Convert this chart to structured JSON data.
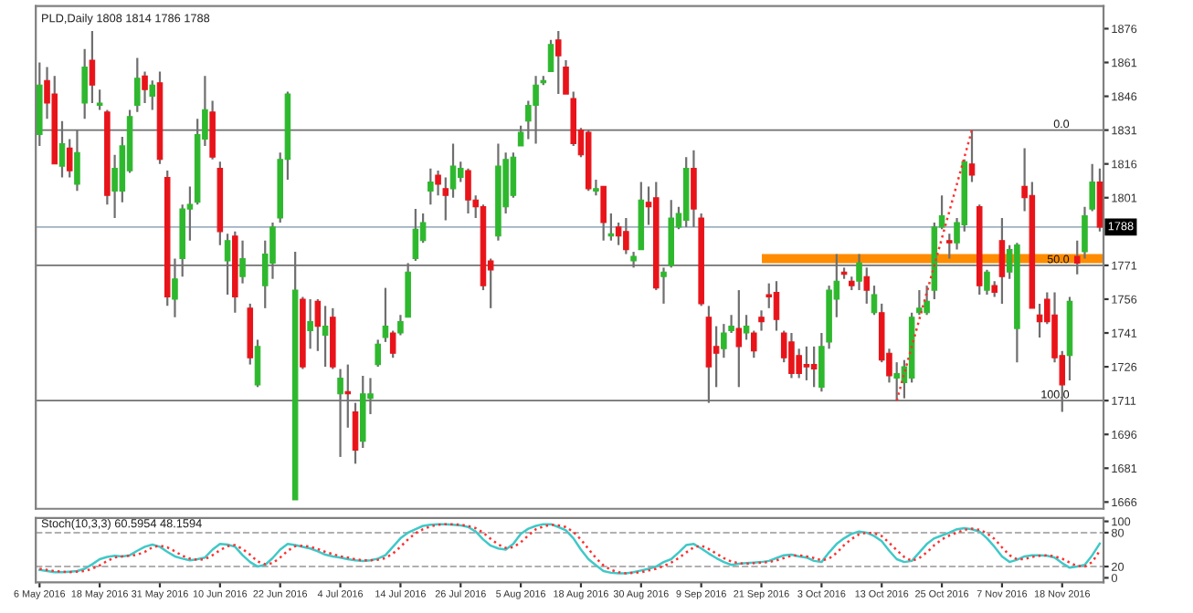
{
  "chart_data": [
    {
      "type": "candlestick",
      "title": "PLD,Daily 1808 1814 1786 1788",
      "categories": [
        null,
        null,
        null,
        null,
        null,
        null,
        null,
        null,
        null,
        null,
        null,
        null,
        null,
        null,
        null,
        null,
        null,
        null,
        null,
        null,
        null,
        null,
        null,
        null,
        null,
        null,
        null,
        null,
        null,
        null,
        null,
        null,
        null,
        null,
        null,
        null,
        null,
        null,
        null,
        null,
        null,
        null,
        null,
        null,
        null,
        null,
        null,
        null,
        null,
        null,
        null,
        null,
        null,
        null,
        null,
        null,
        null,
        null,
        null,
        null,
        null,
        null,
        null,
        null,
        null,
        null,
        null,
        null,
        null,
        null,
        null,
        null,
        null,
        null,
        null,
        null,
        null,
        null,
        null,
        null,
        null,
        null,
        null,
        null,
        null,
        null,
        null,
        null,
        null,
        null,
        null,
        null,
        null,
        null,
        null,
        null,
        null,
        null,
        null,
        null,
        null,
        null,
        null,
        null,
        null,
        null,
        null,
        null,
        null,
        null,
        null,
        null,
        null,
        null,
        null,
        null,
        null,
        null,
        null,
        null,
        null,
        null,
        null,
        null,
        null,
        null,
        null,
        null,
        null,
        null,
        null,
        null,
        null,
        null,
        null,
        null,
        null,
        null,
        null,
        null,
        null,
        null
      ],
      "ohlc": [
        [
          1829,
          1861,
          1824,
          1851
        ],
        [
          1853,
          1859,
          1836,
          1843
        ],
        [
          1847,
          1855,
          1816,
          1816
        ],
        [
          1815,
          1835,
          1810,
          1825
        ],
        [
          1823,
          1827,
          1810,
          1813
        ],
        [
          1807,
          1831,
          1804,
          1821
        ],
        [
          1843,
          1867,
          1836,
          1859
        ],
        [
          1862,
          1875,
          1843,
          1851
        ],
        [
          1842,
          1849,
          1840,
          1843
        ],
        [
          1839,
          1840,
          1798,
          1802
        ],
        [
          1804,
          1820,
          1792,
          1814
        ],
        [
          1804,
          1828,
          1799,
          1824
        ],
        [
          1813,
          1840,
          1812,
          1837
        ],
        [
          1842,
          1863,
          1839,
          1854
        ],
        [
          1855,
          1857,
          1843,
          1849
        ],
        [
          1846,
          1853,
          1840,
          1851
        ],
        [
          1852,
          1857,
          1816,
          1818
        ],
        [
          1810,
          1813,
          1753,
          1757
        ],
        [
          1756,
          1774,
          1748,
          1765
        ],
        [
          1774,
          1798,
          1766,
          1796
        ],
        [
          1796,
          1806,
          1782,
          1798
        ],
        [
          1799,
          1836,
          1798,
          1829
        ],
        [
          1827,
          1855,
          1824,
          1840
        ],
        [
          1839,
          1844,
          1818,
          1819
        ],
        [
          1814,
          1817,
          1780,
          1786
        ],
        [
          1773,
          1785,
          1758,
          1782
        ],
        [
          1784,
          1786,
          1750,
          1757
        ],
        [
          1766,
          1782,
          1763,
          1774
        ],
        [
          1752,
          1754,
          1727,
          1730
        ],
        [
          1718,
          1738,
          1717,
          1735
        ],
        [
          1762,
          1782,
          1752,
          1776
        ],
        [
          1772,
          1790,
          1765,
          1788
        ],
        [
          1792,
          1821,
          1790,
          1818
        ],
        [
          1818,
          1848,
          1809,
          1847
        ],
        [
          1667,
          1777,
          1667,
          1760
        ],
        [
          1756,
          1757,
          1725,
          1726
        ],
        [
          1742,
          1756,
          1734,
          1746
        ],
        [
          1755,
          1756,
          1733,
          1744
        ],
        [
          1740,
          1753,
          1726,
          1744
        ],
        [
          1748,
          1752,
          1725,
          1726
        ],
        [
          1714,
          1725,
          1686,
          1721
        ],
        [
          1715,
          1727,
          1699,
          1714
        ],
        [
          1706,
          1710,
          1683,
          1689
        ],
        [
          1693,
          1722,
          1690,
          1714
        ],
        [
          1712,
          1721,
          1705,
          1714
        ],
        [
          1727,
          1738,
          1726,
          1736
        ],
        [
          1739,
          1761,
          1737,
          1744
        ],
        [
          1741,
          1742,
          1730,
          1732
        ],
        [
          1741,
          1749,
          1740,
          1746
        ],
        [
          1748,
          1772,
          1748,
          1768
        ],
        [
          1774,
          1796,
          1773,
          1787
        ],
        [
          1782,
          1794,
          1781,
          1790
        ],
        [
          1804,
          1814,
          1798,
          1808
        ],
        [
          1811,
          1813,
          1802,
          1807
        ],
        [
          1805,
          1810,
          1791,
          1802
        ],
        [
          1805,
          1825,
          1801,
          1815
        ],
        [
          1810,
          1817,
          1808,
          1814
        ],
        [
          1813,
          1814,
          1794,
          1800
        ],
        [
          1800,
          1802,
          1792,
          1797
        ],
        [
          1797,
          1798,
          1760,
          1762
        ],
        [
          1773,
          1774,
          1752,
          1769
        ],
        [
          1784,
          1825,
          1782,
          1815
        ],
        [
          1797,
          1821,
          1794,
          1818
        ],
        [
          1802,
          1821,
          1801,
          1819
        ],
        [
          1824,
          1833,
          1824,
          1830
        ],
        [
          1835,
          1844,
          1827,
          1842
        ],
        [
          1842,
          1855,
          1825,
          1851
        ],
        [
          1852,
          1855,
          1851,
          1853
        ],
        [
          1857,
          1871,
          1857,
          1869
        ],
        [
          1871,
          1875,
          1847,
          1864
        ],
        [
          1859,
          1862,
          1847,
          1847
        ],
        [
          1845,
          1848,
          1824,
          1825
        ],
        [
          1831,
          1832,
          1819,
          1820
        ],
        [
          1830,
          1831,
          1804,
          1805
        ],
        [
          1804,
          1809,
          1802,
          1805
        ],
        [
          1806,
          1806,
          1782,
          1790
        ],
        [
          1784,
          1794,
          1782,
          1785
        ],
        [
          1788,
          1790,
          1780,
          1784
        ],
        [
          1786,
          1792,
          1776,
          1778
        ],
        [
          1773,
          1777,
          1770,
          1775
        ],
        [
          1778,
          1808,
          1778,
          1800
        ],
        [
          1799,
          1806,
          1789,
          1797
        ],
        [
          1801,
          1808,
          1760,
          1761
        ],
        [
          1766,
          1770,
          1754,
          1768
        ],
        [
          1771,
          1800,
          1770,
          1792
        ],
        [
          1788,
          1797,
          1787,
          1794
        ],
        [
          1791,
          1819,
          1788,
          1814
        ],
        [
          1814,
          1822,
          1788,
          1796
        ],
        [
          1792,
          1794,
          1753,
          1754
        ],
        [
          1748,
          1753,
          1710,
          1726
        ],
        [
          1735,
          1744,
          1717,
          1732
        ],
        [
          1734,
          1745,
          1730,
          1741
        ],
        [
          1742,
          1749,
          1741,
          1744
        ],
        [
          1743,
          1760,
          1717,
          1735
        ],
        [
          1741,
          1749,
          1738,
          1744
        ],
        [
          1741,
          1742,
          1730,
          1733
        ],
        [
          1748,
          1751,
          1742,
          1746
        ],
        [
          1758,
          1763,
          1752,
          1757
        ],
        [
          1759,
          1764,
          1742,
          1747
        ],
        [
          1741,
          1742,
          1728,
          1730
        ],
        [
          1737,
          1741,
          1721,
          1723
        ],
        [
          1731,
          1734,
          1721,
          1723
        ],
        [
          1727,
          1735,
          1720,
          1726
        ],
        [
          1727,
          1735,
          1717,
          1725
        ],
        [
          1717,
          1741,
          1715,
          1735
        ],
        [
          1737,
          1762,
          1734,
          1760
        ],
        [
          1756,
          1776,
          1748,
          1764
        ],
        [
          1768,
          1770,
          1765,
          1767
        ],
        [
          1764,
          1766,
          1760,
          1762
        ],
        [
          1764,
          1776,
          1760,
          1772
        ],
        [
          1766,
          1770,
          1754,
          1760
        ],
        [
          1750,
          1762,
          1749,
          1758
        ],
        [
          1750,
          1754,
          1728,
          1729
        ],
        [
          1732,
          1734,
          1719,
          1722
        ],
        [
          1721,
          1728,
          1711,
          1723
        ],
        [
          1719,
          1729,
          1712,
          1726
        ],
        [
          1721,
          1750,
          1719,
          1748
        ],
        [
          1750,
          1760,
          1749,
          1752
        ],
        [
          1750,
          1762,
          1749,
          1755
        ],
        [
          1760,
          1790,
          1756,
          1788
        ],
        [
          1788,
          1802,
          1787,
          1793
        ],
        [
          1782,
          1785,
          1774,
          1781
        ],
        [
          1781,
          1792,
          1778,
          1790
        ],
        [
          1789,
          1818,
          1786,
          1817
        ],
        [
          1816,
          1831,
          1808,
          1811
        ],
        [
          1797,
          1798,
          1758,
          1762
        ],
        [
          1760,
          1769,
          1758,
          1768
        ],
        [
          1762,
          1764,
          1757,
          1759
        ],
        [
          1782,
          1792,
          1754,
          1766
        ],
        [
          1768,
          1780,
          1765,
          1778
        ],
        [
          1743,
          1781,
          1728,
          1780
        ],
        [
          1806,
          1823,
          1795,
          1801
        ],
        [
          1802,
          1808,
          1752,
          1752
        ],
        [
          1749,
          1754,
          1739,
          1746
        ],
        [
          1756,
          1759,
          1745,
          1746
        ],
        [
          1749,
          1759,
          1728,
          1730
        ],
        [
          1731,
          1733,
          1706,
          1718
        ],
        [
          1731,
          1757,
          1720,
          1755
        ],
        [
          1775,
          1782,
          1767,
          1772
        ],
        [
          1777,
          1797,
          1774,
          1793
        ],
        [
          1796,
          1816,
          1795,
          1808
        ],
        [
          1808,
          1814,
          1786,
          1788
        ]
      ],
      "colors": [
        "#2eb82e",
        "#e8141a",
        "#e8141a",
        "#2eb82e",
        "#e8141a",
        "#2eb82e",
        "#2eb82e",
        "#e8141a",
        "#2eb82e",
        "#e8141a",
        "#2eb82e",
        "#2eb82e",
        "#2eb82e",
        "#2eb82e",
        "#e8141a",
        "#2eb82e",
        "#e8141a",
        "#e8141a",
        "#2eb82e",
        "#2eb82e",
        "#2eb82e",
        "#2eb82e",
        "#2eb82e",
        "#e8141a",
        "#e8141a",
        "#2eb82e",
        "#e8141a",
        "#2eb82e",
        "#e8141a",
        "#2eb82e",
        "#2eb82e",
        "#2eb82e",
        "#2eb82e",
        "#2eb82e",
        "#2eb82e",
        "#e8141a",
        "#2eb82e",
        "#e8141a",
        "#2eb82e",
        "#e8141a",
        "#2eb82e",
        "#e8141a",
        "#e8141a",
        "#2eb82e",
        "#2eb82e",
        "#2eb82e",
        "#2eb82e",
        "#e8141a",
        "#2eb82e",
        "#2eb82e",
        "#2eb82e",
        "#2eb82e",
        "#2eb82e",
        "#e8141a",
        "#e8141a",
        "#2eb82e",
        "#2eb82e",
        "#e8141a",
        "#e8141a",
        "#e8141a",
        "#e8141a",
        "#2eb82e",
        "#2eb82e",
        "#2eb82e",
        "#2eb82e",
        "#2eb82e",
        "#2eb82e",
        "#2eb82e",
        "#2eb82e",
        "#e8141a",
        "#e8141a",
        "#e8141a",
        "#e8141a",
        "#e8141a",
        "#2eb82e",
        "#e8141a",
        "#2eb82e",
        "#e8141a",
        "#e8141a",
        "#2eb82e",
        "#2eb82e",
        "#e8141a",
        "#e8141a",
        "#2eb82e",
        "#2eb82e",
        "#2eb82e",
        "#2eb82e",
        "#e8141a",
        "#e8141a",
        "#e8141a",
        "#e8141a",
        "#2eb82e",
        "#2eb82e",
        "#e8141a",
        "#2eb82e",
        "#e8141a",
        "#e8141a",
        "#e8141a",
        "#e8141a",
        "#e8141a",
        "#e8141a",
        "#e8141a",
        "#e8141a",
        "#e8141a",
        "#2eb82e",
        "#2eb82e",
        "#2eb82e",
        "#e8141a",
        "#e8141a",
        "#2eb82e",
        "#e8141a",
        "#2eb82e",
        "#e8141a",
        "#e8141a",
        "#2eb82e",
        "#2eb82e",
        "#2eb82e",
        "#2eb82e",
        "#2eb82e",
        "#2eb82e",
        "#2eb82e",
        "#e8141a",
        "#2eb82e",
        "#2eb82e",
        "#e8141a",
        "#e8141a",
        "#2eb82e",
        "#e8141a",
        "#e8141a",
        "#2eb82e",
        "#2eb82e",
        "#e8141a",
        "#e8141a",
        "#e8141a",
        "#e8141a",
        "#e8141a",
        "#e8141a",
        "#2eb82e",
        "#e8141a",
        "#2eb82e",
        "#2eb82e",
        "#e8141a"
      ],
      "series": [
        {
          "type": "line",
          "color": "#ff3030",
          "line_style": "dotted",
          "values": [
            null,
            null,
            null,
            null,
            null,
            null,
            null,
            null,
            null,
            null,
            null,
            null,
            null,
            null,
            null,
            null,
            null,
            null,
            null,
            null,
            null,
            null,
            null,
            null,
            null,
            null,
            null,
            null,
            null,
            null,
            null,
            null,
            null,
            null,
            null,
            null,
            null,
            null,
            null,
            null,
            null,
            null,
            null,
            null,
            null,
            null,
            null,
            null,
            null,
            null,
            null,
            null,
            null,
            null,
            null,
            null,
            null,
            null,
            null,
            null,
            null,
            null,
            null,
            null,
            null,
            null,
            null,
            null,
            null,
            null,
            null,
            null,
            null,
            null,
            null,
            null,
            null,
            null,
            null,
            null,
            null,
            null,
            null,
            null,
            null,
            null,
            null,
            null,
            null,
            null,
            null,
            null,
            null,
            null,
            null,
            null,
            null,
            null,
            null,
            null,
            null,
            null,
            null,
            null,
            null,
            null,
            null,
            null,
            null,
            null,
            null,
            null,
            null,
            null,
            1711,
            null,
            null,
            null,
            null,
            null,
            null,
            null,
            null,
            null,
            1831,
            null,
            null,
            null,
            null,
            null,
            null,
            null,
            null,
            null,
            null,
            null,
            null,
            null,
            null,
            null,
            null,
            null
          ]
        }
      ],
      "ylim": [
        1663,
        1886
      ],
      "yticks": [
        1666,
        1681,
        1696,
        1711,
        1726,
        1741,
        1756,
        1771,
        1801,
        1816,
        1831,
        1846,
        1861,
        1876
      ],
      "ref_lines": [
        {
          "axis": "y",
          "value": 1788,
          "label": "1788",
          "color": "#9fb0c0"
        },
        {
          "axis": "y",
          "value": 1831,
          "color": "#707070"
        },
        {
          "axis": "y",
          "value": 1771,
          "color": "#707070"
        },
        {
          "axis": "y",
          "value": 1711,
          "color": "#707070"
        }
      ],
      "annotations": [
        {
          "text": "0.0",
          "y": 1831
        },
        {
          "text": "50.0",
          "y": 1771
        },
        {
          "text": "100.0",
          "y": 1711
        }
      ],
      "bands": [
        {
          "axis": "y",
          "from": 1772,
          "to": 1776,
          "color": "#ff8c00"
        }
      ],
      "tick_labels": "y"
    },
    {
      "type": "line",
      "title": "Stoch(10,3,3) 60.5954 48.1594",
      "categories": [
        "6 May 2016",
        null,
        null,
        null,
        null,
        null,
        null,
        null,
        "18 May 2016",
        null,
        null,
        null,
        null,
        null,
        null,
        null,
        "31 May 2016",
        null,
        null,
        null,
        null,
        null,
        null,
        null,
        "10 Jun 2016",
        null,
        null,
        null,
        null,
        null,
        null,
        null,
        "22 Jun 2016",
        null,
        null,
        null,
        null,
        null,
        null,
        null,
        "4 Jul 2016",
        null,
        null,
        null,
        null,
        null,
        null,
        null,
        "14 Jul 2016",
        null,
        null,
        null,
        null,
        null,
        null,
        null,
        "26 Jul 2016",
        null,
        null,
        null,
        null,
        null,
        null,
        null,
        "5 Aug 2016",
        null,
        null,
        null,
        null,
        null,
        null,
        null,
        "18 Aug 2016",
        null,
        null,
        null,
        null,
        null,
        null,
        null,
        "30 Aug 2016",
        null,
        null,
        null,
        null,
        null,
        null,
        null,
        "9 Sep 2016",
        null,
        null,
        null,
        null,
        null,
        null,
        null,
        "21 Sep 2016",
        null,
        null,
        null,
        null,
        null,
        null,
        null,
        "3 Oct 2016",
        null,
        null,
        null,
        null,
        null,
        null,
        null,
        "13 Oct 2016",
        null,
        null,
        null,
        null,
        null,
        null,
        null,
        "25 Oct 2016",
        null,
        null,
        null,
        null,
        null,
        null,
        null,
        "7 Nov 2016",
        null,
        null,
        null,
        null,
        null,
        null,
        null,
        "18 Nov 2016",
        null,
        null,
        null,
        null,
        null
      ],
      "series": [
        {
          "color": "#40c8c8",
          "line_style": "solid",
          "values": [
            14,
            12,
            10,
            10,
            11,
            12,
            16,
            24,
            33,
            37,
            39,
            38,
            40,
            48,
            55,
            59,
            55,
            46,
            38,
            34,
            31,
            33,
            36,
            50,
            60,
            59,
            55,
            40,
            28,
            20,
            23,
            35,
            50,
            60,
            58,
            55,
            52,
            47,
            41,
            38,
            36,
            33,
            31,
            30,
            31,
            34,
            40,
            55,
            70,
            80,
            86,
            92,
            94,
            95,
            95,
            94,
            93,
            90,
            82,
            68,
            57,
            52,
            50,
            60,
            78,
            87,
            92,
            95,
            95,
            90,
            84,
            70,
            50,
            33,
            22,
            12,
            9,
            8,
            8,
            10,
            13,
            16,
            20,
            28,
            33,
            45,
            58,
            60,
            52,
            43,
            35,
            28,
            23,
            25,
            26,
            27,
            28,
            30,
            35,
            40,
            41,
            38,
            36,
            30,
            28,
            45,
            60,
            70,
            78,
            82,
            80,
            74,
            65,
            48,
            33,
            28,
            30,
            45,
            60,
            70,
            75,
            80,
            86,
            88,
            86,
            82,
            70,
            55,
            38,
            28,
            32,
            38,
            40,
            40,
            39,
            36,
            26,
            18,
            20,
            23,
            40,
            60.5954
          ]
        },
        {
          "color": "#ff3030",
          "line_style": "dotted",
          "values": [
            16,
            14,
            12,
            11,
            10,
            11,
            12,
            16,
            22,
            30,
            36,
            38,
            39,
            41,
            46,
            54,
            57,
            54,
            47,
            39,
            34,
            32,
            33,
            40,
            49,
            56,
            58,
            51,
            41,
            29,
            24,
            26,
            36,
            48,
            56,
            57,
            55,
            51,
            46,
            42,
            38,
            36,
            33,
            31,
            31,
            32,
            35,
            43,
            55,
            68,
            79,
            86,
            91,
            94,
            95,
            95,
            94,
            92,
            88,
            80,
            69,
            59,
            53,
            54,
            63,
            75,
            86,
            91,
            94,
            93,
            90,
            81,
            68,
            51,
            35,
            22,
            14,
            10,
            8,
            9,
            10,
            13,
            16,
            21,
            27,
            35,
            45,
            54,
            57,
            51,
            43,
            35,
            29,
            26,
            25,
            26,
            27,
            28,
            31,
            35,
            39,
            40,
            38,
            35,
            31,
            34,
            44,
            58,
            69,
            77,
            80,
            79,
            74,
            62,
            49,
            37,
            30,
            35,
            45,
            58,
            68,
            75,
            80,
            85,
            87,
            85,
            79,
            69,
            54,
            40,
            33,
            33,
            37,
            39,
            40,
            38,
            34,
            27,
            21,
            20,
            28,
            48.1594
          ]
        }
      ],
      "ylim": [
        -8,
        106
      ],
      "yticks": [
        0,
        20,
        80,
        100
      ],
      "ref_lines": [
        {
          "axis": "y",
          "value": 20,
          "color": "#b0b0b0",
          "line_style": "dashed"
        },
        {
          "axis": "y",
          "value": 80,
          "color": "#b0b0b0",
          "line_style": "dashed"
        }
      ]
    }
  ]
}
